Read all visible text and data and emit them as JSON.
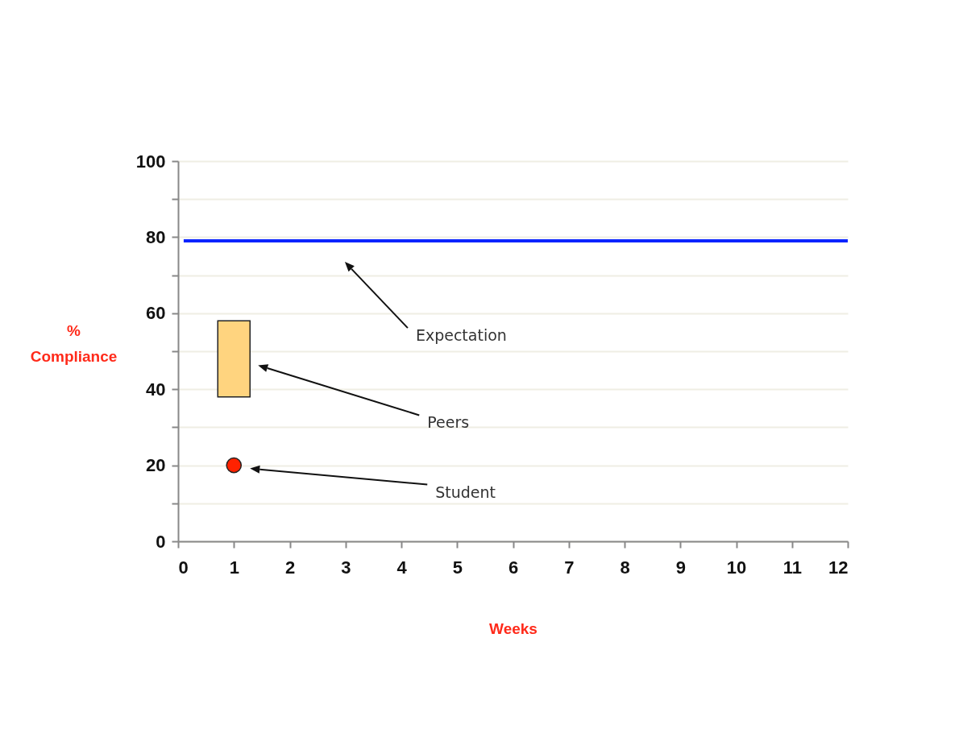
{
  "chart_data": {
    "type": "scatter",
    "xlabel": "Weeks",
    "ylabel": "% Compliance",
    "xlim": [
      0,
      12
    ],
    "xticks": [
      0,
      1,
      2,
      3,
      4,
      5,
      6,
      7,
      8,
      9,
      10,
      11,
      12
    ],
    "ylim": [
      0,
      100
    ],
    "yticks": [
      0,
      {
        "value": 10,
        "label": null
      },
      20,
      {
        "value": 30,
        "label": null
      },
      40,
      {
        "value": 50,
        "label": null
      },
      60,
      {
        "value": 70,
        "label": null
      },
      80,
      {
        "value": 90,
        "label": null
      },
      100
    ],
    "grid": "y",
    "series": [
      {
        "type": "line",
        "color": "#0a24ff",
        "x": [
          0.1,
          12
        ],
        "values": [
          79,
          79
        ]
      },
      {
        "type": "bar",
        "color": "#ffd47f",
        "x": [
          1
        ],
        "base": [
          38
        ],
        "values": [
          20
        ]
      },
      {
        "color": "#ff2200",
        "x": [
          1
        ],
        "values": [
          20
        ],
        "marker": "circle"
      }
    ],
    "annotations": [
      "Expectation",
      "Peers",
      "Student"
    ]
  }
}
